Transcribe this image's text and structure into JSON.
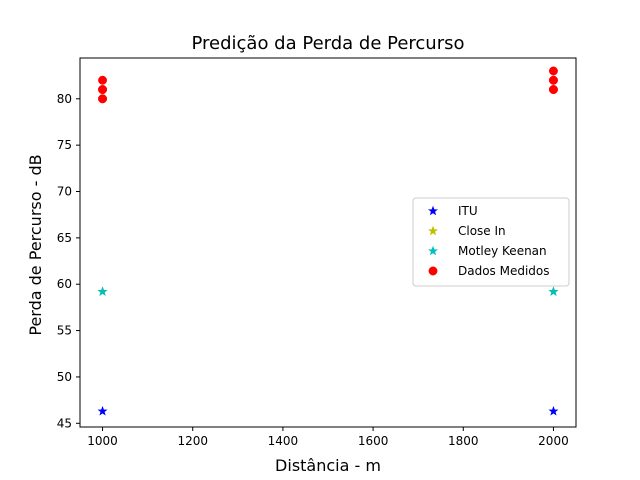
{
  "chart_data": {
    "type": "scatter",
    "title": "Predição da Perda de Percurso",
    "xlabel": "Distância - m",
    "ylabel": "Perda de Percurso - dB",
    "xlim": [
      950,
      2050
    ],
    "ylim": [
      44.6,
      84.4
    ],
    "xticks": [
      1000,
      1200,
      1400,
      1600,
      1800,
      2000
    ],
    "yticks": [
      45,
      50,
      55,
      60,
      65,
      70,
      75,
      80
    ],
    "grid": false,
    "legend_position": "center-right",
    "series": [
      {
        "name": "ITU",
        "color": "#0000ff",
        "marker": "star",
        "x": [
          1000,
          2000
        ],
        "y": [
          46.3,
          46.3
        ]
      },
      {
        "name": "Close In",
        "color": "#bfbf00",
        "marker": "star",
        "x": [
          1000,
          2000
        ],
        "y": [
          59.2,
          59.2
        ]
      },
      {
        "name": "Motley Keenan",
        "color": "#00bfbf",
        "marker": "star",
        "x": [
          1000,
          2000
        ],
        "y": [
          59.2,
          59.2
        ]
      },
      {
        "name": "Dados Medidos",
        "color": "#ff0000",
        "marker": "circle",
        "x": [
          1000,
          1000,
          1000,
          1000,
          1000,
          2000,
          2000,
          2000,
          2000,
          2000
        ],
        "y": [
          80,
          81,
          82,
          81,
          80,
          83,
          82,
          81,
          82,
          81
        ]
      }
    ]
  }
}
